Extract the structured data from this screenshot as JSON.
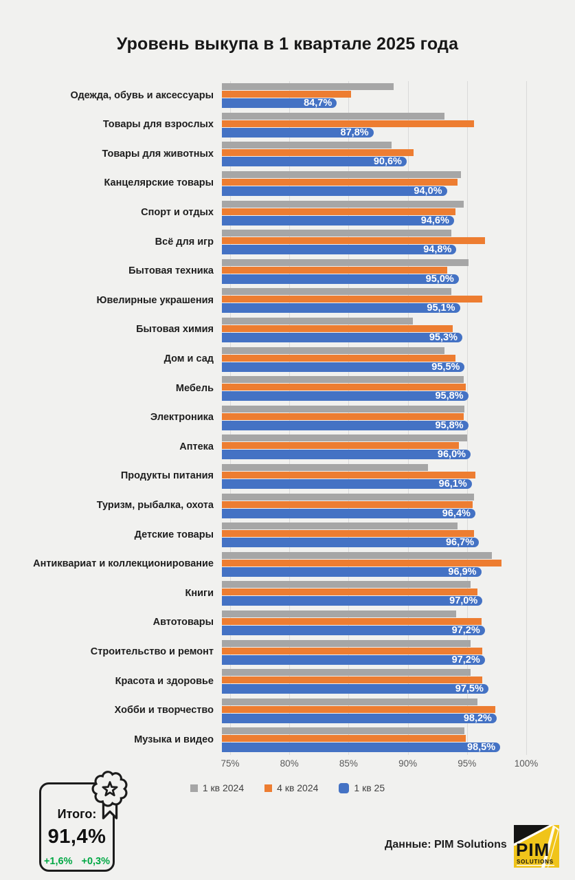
{
  "title": "Уровень выкупа в 1 квартале 2025 года",
  "chart_data": {
    "type": "bar",
    "orientation": "horizontal",
    "title": "Уровень выкупа в 1 квартале 2025 года",
    "x_axis": {
      "min": 75,
      "max": 100,
      "ticks": [
        "75%",
        "80%",
        "85%",
        "90%",
        "95%",
        "100%"
      ],
      "grid": true
    },
    "legend_position": "bottom",
    "legend": [
      {
        "name": "1 кв 2024",
        "color": "#a6a6a6"
      },
      {
        "name": "4 кв 2024",
        "color": "#ed7d31"
      },
      {
        "name": "1 кв 25",
        "color": "#4472c4"
      }
    ],
    "categories": [
      "Одежда, обувь и аксессуары",
      "Товары для взрослых",
      "Товары для животных",
      "Канцелярские товары",
      "Спорт и отдых",
      "Всё для игр",
      "Бытовая техника",
      "Ювелирные украшения",
      "Бытовая химия",
      "Дом и сад",
      "Мебель",
      "Электроника",
      "Аптека",
      "Продукты питания",
      "Туризм, рыбалка, охота",
      "Детские товары",
      "Антиквариат и коллекционирование",
      "Книги",
      "Автотовары",
      "Строительство и ремонт",
      "Красота и здоровье",
      "Хобби и творчество",
      "Музыка и видео"
    ],
    "series": [
      {
        "key": "q1-2024",
        "name": "1 кв 2024",
        "color": "#a6a6a6",
        "values": [
          89.5,
          93.8,
          89.3,
          95.2,
          95.4,
          94.4,
          95.8,
          94.4,
          91.1,
          93.8,
          95.4,
          95.5,
          95.7,
          92.4,
          96.3,
          94.9,
          97.8,
          96.0,
          94.8,
          96.0,
          96.0,
          96.6,
          95.5
        ]
      },
      {
        "key": "q4-2024",
        "name": "4 кв 2024",
        "color": "#ed7d31",
        "values": [
          85.9,
          96.3,
          91.2,
          94.9,
          94.7,
          97.2,
          94.0,
          97.0,
          94.5,
          94.7,
          95.6,
          95.4,
          95.0,
          96.4,
          96.2,
          96.3,
          98.6,
          96.6,
          96.9,
          97.0,
          97.0,
          98.1,
          95.6
        ]
      },
      {
        "key": "q1-25",
        "name": "1 кв 25",
        "color": "#4472c4",
        "data_labels": true,
        "values": [
          84.7,
          87.8,
          90.6,
          94.0,
          94.6,
          94.8,
          95.0,
          95.1,
          95.3,
          95.5,
          95.8,
          95.8,
          96.0,
          96.1,
          96.4,
          96.7,
          96.9,
          97.0,
          97.2,
          97.2,
          97.5,
          98.2,
          98.5
        ],
        "labels": [
          "84,7%",
          "87,8%",
          "90,6%",
          "94,0%",
          "94,6%",
          "94,8%",
          "95,0%",
          "95,1%",
          "95,3%",
          "95,5%",
          "95,8%",
          "95,8%",
          "96,0%",
          "96,1%",
          "96,4%",
          "96,7%",
          "96,9%",
          "97,0%",
          "97,2%",
          "97,2%",
          "97,5%",
          "98,2%",
          "98,5%"
        ]
      }
    ]
  },
  "summary_badge": {
    "label": "Итого:",
    "value": "91,4%",
    "delta_yoy": "+1,6%",
    "delta_qoq": "+0,3%",
    "delta_color": "#00a844"
  },
  "footer": {
    "source_label": "Данные: PIM Solutions",
    "logo": {
      "line1": "PIM",
      "line2": "SOLUTIONS",
      "bg_color": "#f0c41a"
    }
  }
}
